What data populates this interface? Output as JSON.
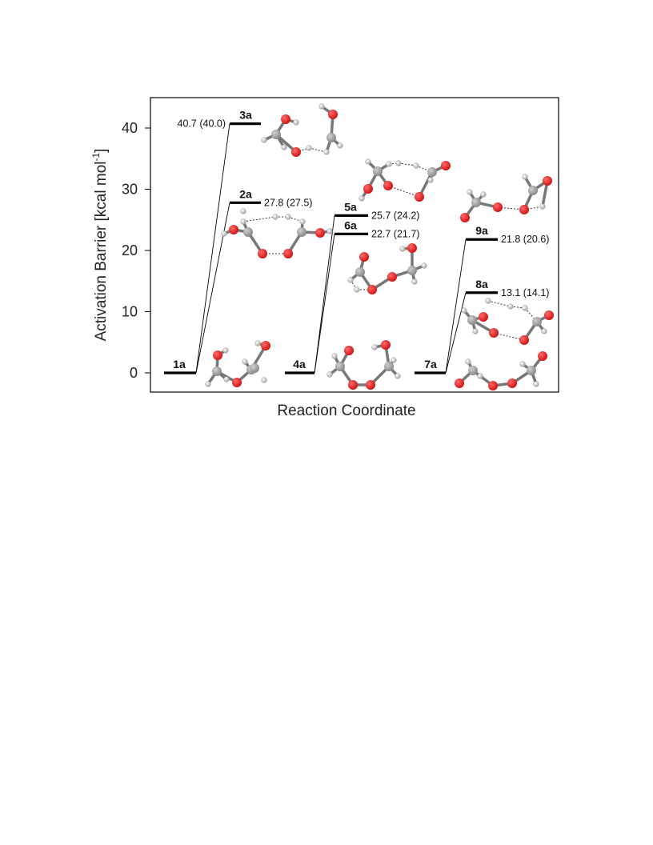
{
  "chart_data": {
    "type": "energy-diagram",
    "xlabel": "Reaction Coordinate",
    "ylabel": "Activation Barrier  [kcal mol",
    "ylabel_sup": "-1",
    "ylabel_end": "]",
    "ylim": [
      -3,
      45
    ],
    "yticks": [
      0,
      10,
      20,
      30,
      40
    ],
    "grid": false,
    "legend": "none",
    "colors": {
      "level": "#000000",
      "oxygen": "#d01515",
      "carbon": "#8a8a8a",
      "hydrogen": "#e8e8e8"
    },
    "reactants": [
      {
        "label": "1a",
        "value": 0
      },
      {
        "label": "4a",
        "value": 0
      },
      {
        "label": "7a",
        "value": 0
      }
    ],
    "transition_states": [
      {
        "label": "3a",
        "value": 40.7,
        "alt_value": 40.0,
        "text": "40.7 (40.0)",
        "from": "1a"
      },
      {
        "label": "2a",
        "value": 27.8,
        "alt_value": 27.5,
        "text": "27.8 (27.5)",
        "from": "1a"
      },
      {
        "label": "5a",
        "value": 25.7,
        "alt_value": 24.2,
        "text": "25.7 (24.2)",
        "from": "4a"
      },
      {
        "label": "6a",
        "value": 22.7,
        "alt_value": 21.7,
        "text": "22.7 (21.7)",
        "from": "4a"
      },
      {
        "label": "9a",
        "value": 21.8,
        "alt_value": 20.6,
        "text": "21.8 (20.6)",
        "from": "7a"
      },
      {
        "label": "8a",
        "value": 13.1,
        "alt_value": 14.1,
        "text": "13.1 (14.1)",
        "from": "7a"
      }
    ]
  }
}
